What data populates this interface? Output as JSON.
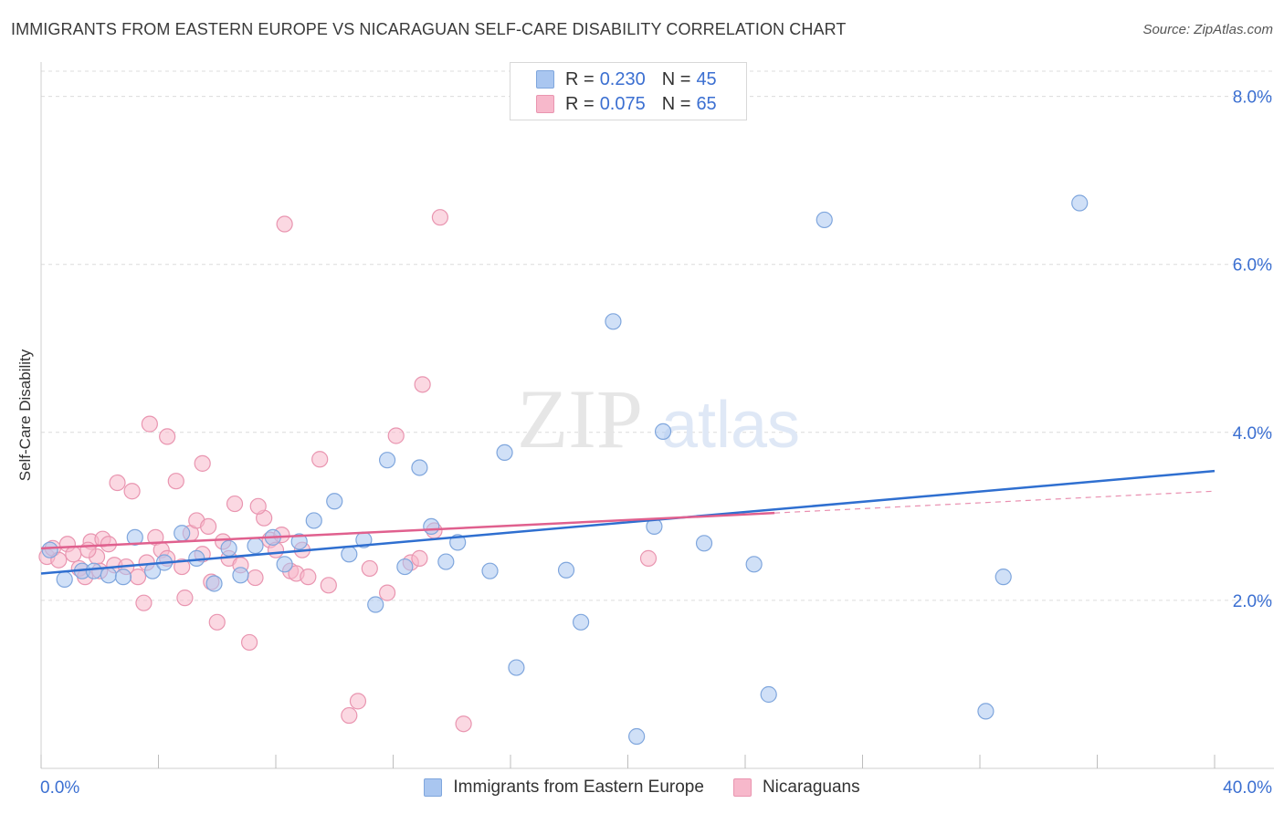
{
  "header": {
    "title": "IMMIGRANTS FROM EASTERN EUROPE VS NICARAGUAN SELF-CARE DISABILITY CORRELATION CHART",
    "source": "Source: ZipAtlas.com"
  },
  "watermark": {
    "zip": "ZIP",
    "atlas": "atlas"
  },
  "legend": {
    "rows": [
      {
        "r_label": "R = ",
        "r_value": "0.230",
        "n_label": "N = ",
        "n_value": "45",
        "color": "#a9c6f0"
      },
      {
        "r_label": "R = ",
        "r_value": "0.075",
        "n_label": "N = ",
        "n_value": "65",
        "color": "#f7b8cb"
      }
    ]
  },
  "colors": {
    "blue_fill": "#a9c6f0",
    "blue_stroke": "#7fa6dd",
    "blue_line": "#2f6fd0",
    "pink_fill": "#f7b8cb",
    "pink_stroke": "#e995b0",
    "pink_line": "#e0608e",
    "tick_label": "#3b6fd1",
    "grid": "#dcdcdc"
  },
  "chart_data": {
    "type": "scatter",
    "title": "IMMIGRANTS FROM EASTERN EUROPE VS NICARAGUAN SELF-CARE DISABILITY CORRELATION CHART",
    "xlabel": "",
    "ylabel": "Self-Care Disability",
    "xlim": [
      0,
      40
    ],
    "ylim": [
      0,
      8.3
    ],
    "x_tick_labels": [
      "0.0%",
      "40.0%"
    ],
    "y_ticks": [
      2,
      4,
      6,
      8
    ],
    "y_tick_labels": [
      "2.0%",
      "4.0%",
      "6.0%",
      "8.0%"
    ],
    "grid": true,
    "legend_position": "top-center",
    "series": [
      {
        "name": "Immigrants from Eastern Europe",
        "color": "#a9c6f0",
        "trend": {
          "x": [
            0,
            40
          ],
          "y": [
            2.32,
            3.54
          ],
          "style": "solid"
        },
        "points": [
          [
            0.3,
            2.6
          ],
          [
            0.8,
            2.25
          ],
          [
            1.4,
            2.35
          ],
          [
            1.8,
            2.35
          ],
          [
            2.3,
            2.3
          ],
          [
            2.8,
            2.28
          ],
          [
            3.2,
            2.75
          ],
          [
            3.8,
            2.35
          ],
          [
            4.2,
            2.45
          ],
          [
            4.8,
            2.8
          ],
          [
            5.3,
            2.5
          ],
          [
            5.9,
            2.2
          ],
          [
            6.4,
            2.62
          ],
          [
            6.8,
            2.3
          ],
          [
            7.3,
            2.65
          ],
          [
            7.9,
            2.75
          ],
          [
            8.3,
            2.43
          ],
          [
            8.8,
            2.7
          ],
          [
            9.3,
            2.95
          ],
          [
            10.0,
            3.18
          ],
          [
            10.5,
            2.55
          ],
          [
            11.0,
            2.72
          ],
          [
            11.4,
            1.95
          ],
          [
            11.8,
            3.67
          ],
          [
            12.4,
            2.4
          ],
          [
            12.9,
            3.58
          ],
          [
            13.3,
            2.88
          ],
          [
            13.8,
            2.46
          ],
          [
            14.2,
            2.69
          ],
          [
            15.3,
            2.35
          ],
          [
            15.8,
            3.76
          ],
          [
            17.9,
            2.36
          ],
          [
            18.4,
            1.74
          ],
          [
            19.5,
            5.32
          ],
          [
            20.3,
            0.38
          ],
          [
            20.9,
            2.88
          ],
          [
            21.2,
            4.01
          ],
          [
            22.6,
            2.68
          ],
          [
            24.3,
            2.43
          ],
          [
            24.8,
            0.88
          ],
          [
            26.7,
            6.53
          ],
          [
            32.2,
            0.68
          ],
          [
            32.8,
            2.28
          ],
          [
            35.4,
            6.73
          ],
          [
            16.2,
            1.2
          ]
        ]
      },
      {
        "name": "Nicaraguans",
        "color": "#f7b8cb",
        "trend": {
          "x": [
            0,
            25
          ],
          "y": [
            2.62,
            3.04
          ],
          "style": "solid",
          "dashed_extension": {
            "x": [
              25,
              40
            ],
            "y": [
              3.04,
              3.3
            ]
          }
        },
        "points": [
          [
            0.2,
            2.52
          ],
          [
            0.4,
            2.62
          ],
          [
            0.6,
            2.48
          ],
          [
            0.9,
            2.67
          ],
          [
            1.1,
            2.55
          ],
          [
            1.3,
            2.38
          ],
          [
            1.5,
            2.28
          ],
          [
            1.7,
            2.7
          ],
          [
            1.9,
            2.52
          ],
          [
            2.1,
            2.73
          ],
          [
            2.3,
            2.67
          ],
          [
            2.5,
            2.42
          ],
          [
            2.6,
            3.4
          ],
          [
            2.9,
            2.4
          ],
          [
            3.1,
            3.3
          ],
          [
            3.3,
            2.28
          ],
          [
            3.5,
            1.97
          ],
          [
            3.6,
            2.45
          ],
          [
            3.7,
            4.1
          ],
          [
            3.9,
            2.75
          ],
          [
            4.1,
            2.6
          ],
          [
            4.3,
            3.95
          ],
          [
            4.6,
            3.42
          ],
          [
            4.8,
            2.4
          ],
          [
            4.9,
            2.03
          ],
          [
            5.1,
            2.8
          ],
          [
            5.3,
            2.95
          ],
          [
            5.5,
            3.63
          ],
          [
            5.7,
            2.88
          ],
          [
            5.8,
            2.22
          ],
          [
            6.0,
            1.74
          ],
          [
            6.2,
            2.7
          ],
          [
            6.4,
            2.5
          ],
          [
            6.6,
            3.15
          ],
          [
            6.8,
            2.42
          ],
          [
            7.1,
            1.5
          ],
          [
            7.3,
            2.27
          ],
          [
            7.6,
            2.98
          ],
          [
            7.8,
            2.72
          ],
          [
            8.0,
            2.6
          ],
          [
            8.2,
            2.78
          ],
          [
            8.5,
            2.35
          ],
          [
            8.7,
            2.32
          ],
          [
            8.9,
            2.6
          ],
          [
            9.5,
            3.68
          ],
          [
            9.8,
            2.18
          ],
          [
            10.5,
            0.63
          ],
          [
            10.8,
            0.8
          ],
          [
            11.2,
            2.38
          ],
          [
            11.8,
            2.09
          ],
          [
            12.1,
            3.96
          ],
          [
            12.6,
            2.45
          ],
          [
            12.9,
            2.5
          ],
          [
            13.0,
            4.57
          ],
          [
            13.4,
            2.83
          ],
          [
            13.6,
            6.56
          ],
          [
            14.4,
            0.53
          ],
          [
            20.7,
            2.5
          ],
          [
            8.3,
            6.48
          ],
          [
            2.0,
            2.35
          ],
          [
            7.4,
            3.12
          ],
          [
            5.5,
            2.55
          ],
          [
            4.3,
            2.5
          ],
          [
            1.6,
            2.6
          ],
          [
            9.1,
            2.28
          ]
        ]
      }
    ]
  },
  "bottom_legend": {
    "items": [
      {
        "label": "Immigrants from Eastern Europe",
        "color": "#a9c6f0"
      },
      {
        "label": "Nicaraguans",
        "color": "#f7b8cb"
      }
    ]
  }
}
